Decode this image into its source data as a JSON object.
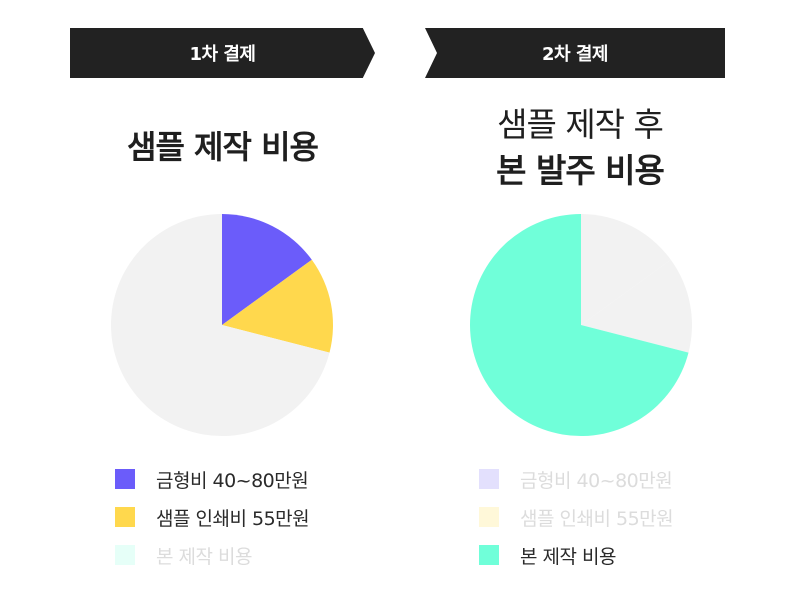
{
  "banners": {
    "first": "1차 결제",
    "second": "2차 결제"
  },
  "titles": {
    "first": "샘플 제작 비용",
    "second_line1": "샘플 제작 후",
    "second_line2": "본 발주 비용"
  },
  "colors": {
    "mold": "#6b5cfa",
    "print": "#ffd84d",
    "production": "#70ffd9",
    "background_slice": "#f2f2f2",
    "banner": "#222222"
  },
  "chart_data": [
    {
      "type": "pie",
      "title": "샘플 제작 비용",
      "slices": [
        {
          "label": "금형비 40~80만원",
          "value": 15,
          "color": "#6b5cfa",
          "highlighted": true
        },
        {
          "label": "샘플 인쇄비 55만원",
          "value": 14,
          "color": "#ffd84d",
          "highlighted": true
        },
        {
          "label": "본 제작 비용",
          "value": 71,
          "color": "#f2f2f2",
          "highlighted": false
        }
      ],
      "legend": [
        {
          "label": "금형비 40~80만원",
          "color": "#6b5cfa",
          "highlighted": true
        },
        {
          "label": "샘플 인쇄비 55만원",
          "color": "#ffd84d",
          "highlighted": true
        },
        {
          "label": "본 제작 비용",
          "color": "#e6fff8",
          "highlighted": false
        }
      ]
    },
    {
      "type": "pie",
      "title": "샘플 제작 후 본 발주 비용",
      "slices": [
        {
          "label": "금형비 40~80만원",
          "value": 15,
          "color": "#f2f2f2",
          "highlighted": false
        },
        {
          "label": "샘플 인쇄비 55만원",
          "value": 14,
          "color": "#f2f2f2",
          "highlighted": false
        },
        {
          "label": "본 제작 비용",
          "value": 71,
          "color": "#70ffd9",
          "highlighted": true
        }
      ],
      "legend": [
        {
          "label": "금형비 40~80만원",
          "color": "#e3e0fd",
          "highlighted": false
        },
        {
          "label": "샘플 인쇄비 55만원",
          "color": "#fff8d9",
          "highlighted": false
        },
        {
          "label": "본 제작 비용",
          "color": "#70ffd9",
          "highlighted": true
        }
      ]
    }
  ]
}
